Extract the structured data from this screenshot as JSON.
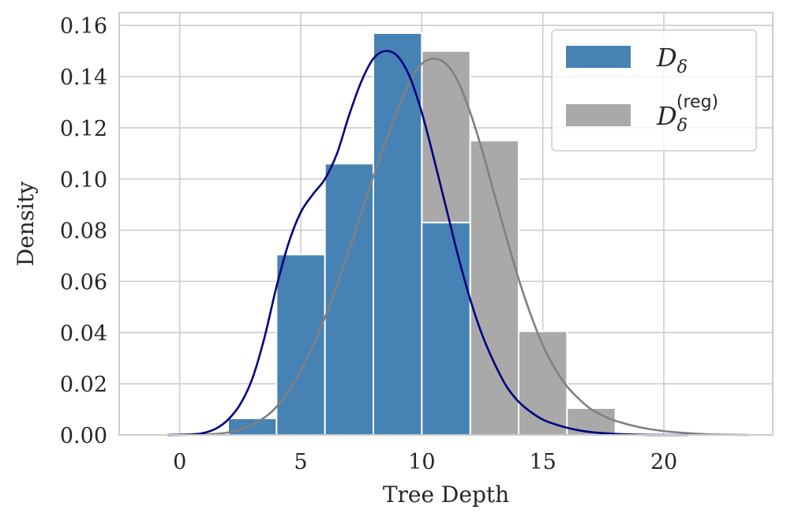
{
  "chart_data": {
    "type": "bar",
    "xlabel": "Tree Depth",
    "ylabel": "Density",
    "xlim": [
      -2.5,
      24.5
    ],
    "ylim": [
      0,
      0.165
    ],
    "xticks": [
      0,
      5,
      10,
      15,
      20
    ],
    "yticks": [
      0.0,
      0.02,
      0.04,
      0.06,
      0.08,
      0.1,
      0.12,
      0.14,
      0.16
    ],
    "grid": true,
    "legend_position": "top-right",
    "bin_edges": [
      2,
      4,
      6,
      8,
      10,
      12,
      14,
      16,
      18
    ],
    "series": [
      {
        "name": "D_δ",
        "legend_main": "D",
        "legend_sub": "δ",
        "legend_sup": "",
        "color": "#4682b4",
        "values": [
          0.0065,
          0.0705,
          0.106,
          0.157,
          0.083,
          0.0,
          0.0,
          0.0
        ],
        "kde": {
          "color": "#000080",
          "x": [
            -0.5,
            0.5,
            1.0,
            1.5,
            2.0,
            2.5,
            3.0,
            3.5,
            4.0,
            4.5,
            5.0,
            5.5,
            6.0,
            6.5,
            7.0,
            7.5,
            8.0,
            8.5,
            9.0,
            9.5,
            10.0,
            10.5,
            11.0,
            11.5,
            12.0,
            12.5,
            13.0,
            13.5,
            14.0,
            14.5,
            15.0,
            15.5,
            16.0,
            16.5,
            17.0,
            17.5,
            18.0,
            19.0,
            20.0,
            21.0
          ],
          "y": [
            0.0,
            0.0002,
            0.0008,
            0.0025,
            0.006,
            0.012,
            0.022,
            0.038,
            0.058,
            0.075,
            0.087,
            0.094,
            0.1,
            0.11,
            0.125,
            0.138,
            0.147,
            0.15,
            0.148,
            0.14,
            0.126,
            0.108,
            0.089,
            0.07,
            0.053,
            0.039,
            0.028,
            0.019,
            0.013,
            0.009,
            0.006,
            0.0042,
            0.0028,
            0.0018,
            0.0011,
            0.0007,
            0.0004,
            0.0001,
            0.0,
            0.0
          ]
        }
      },
      {
        "name": "D_δ^(reg)",
        "legend_main": "D",
        "legend_sub": "δ",
        "legend_sup": "(reg)",
        "color": "#a9a9a9",
        "values": [
          0.0,
          0.011,
          0.057,
          0.1135,
          0.15,
          0.115,
          0.0405,
          0.0105
        ],
        "kde": {
          "color": "#808080",
          "x": [
            -0.5,
            1.0,
            2.0,
            3.0,
            4.0,
            5.0,
            6.0,
            7.0,
            8.0,
            9.0,
            9.5,
            10.0,
            10.5,
            11.0,
            11.5,
            12.0,
            12.5,
            13.0,
            13.5,
            14.0,
            14.5,
            15.0,
            15.5,
            16.0,
            16.5,
            17.0,
            17.5,
            18.0,
            19.0,
            20.0,
            21.0,
            22.0,
            23.5
          ],
          "y": [
            0.0,
            0.0002,
            0.001,
            0.004,
            0.011,
            0.025,
            0.046,
            0.072,
            0.101,
            0.127,
            0.138,
            0.145,
            0.147,
            0.145,
            0.138,
            0.126,
            0.111,
            0.094,
            0.077,
            0.061,
            0.047,
            0.035,
            0.026,
            0.019,
            0.014,
            0.01,
            0.0075,
            0.0055,
            0.003,
            0.0015,
            0.0007,
            0.0002,
            0.0
          ]
        }
      }
    ]
  }
}
